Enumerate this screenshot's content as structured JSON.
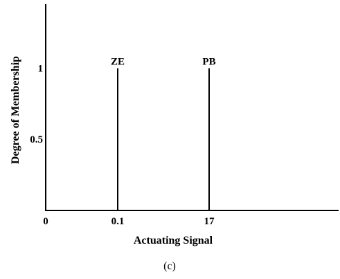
{
  "chart_data": {
    "type": "line",
    "title": "",
    "xlabel": "Actuating Signal",
    "ylabel": "Degree of Membership",
    "caption": "(c)",
    "x_tick_labels": [
      "0",
      "0.1",
      "17"
    ],
    "y_tick_labels": [
      "0.5",
      "1"
    ],
    "y_ticks": [
      0.5,
      1
    ],
    "ylim": [
      0,
      1.45
    ],
    "grid": false,
    "legend": "none",
    "series": [
      {
        "name": "ZE",
        "x": [
          0.1,
          0.1
        ],
        "y": [
          0,
          1
        ]
      },
      {
        "name": "PB",
        "x": [
          17,
          17
        ],
        "y": [
          0,
          1
        ]
      }
    ]
  }
}
